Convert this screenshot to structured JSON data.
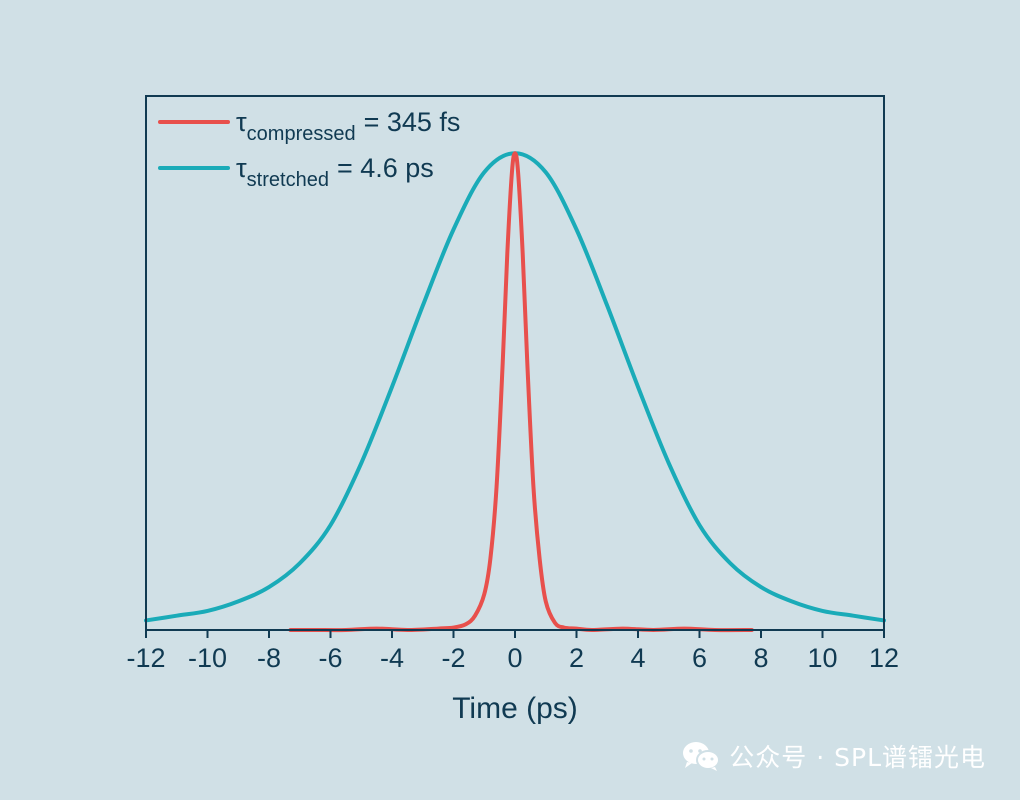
{
  "chart_data": {
    "type": "line",
    "xlabel": "Time (ps)",
    "xlim": [
      -12,
      12
    ],
    "xticks": [
      -12,
      -10,
      -8,
      -6,
      -4,
      -2,
      0,
      2,
      4,
      6,
      8,
      10,
      12
    ],
    "ylabel": "",
    "ylim": [
      0,
      1.12
    ],
    "y_tick_labels_shown": false,
    "grid": false,
    "legend_position": "top-left",
    "series": [
      {
        "name": "τcompressed = 345 fs",
        "legend_symbol": "τ",
        "legend_subscript": "compressed",
        "legend_value": "= 345 fs",
        "color": "#e8504c",
        "x": [
          -7.3,
          -6.5,
          -5.5,
          -4.5,
          -3.5,
          -2.5,
          -2.0,
          -1.6,
          -1.3,
          -1.0,
          -0.8,
          -0.6,
          -0.4,
          -0.25,
          -0.1,
          0.0,
          0.1,
          0.25,
          0.4,
          0.6,
          0.8,
          1.0,
          1.3,
          1.6,
          2.0,
          2.5,
          3.5,
          4.5,
          5.5,
          6.5,
          7.7
        ],
        "y": [
          0.0,
          0.0,
          0.0,
          0.003,
          0.0,
          0.003,
          0.005,
          0.012,
          0.03,
          0.075,
          0.15,
          0.3,
          0.56,
          0.79,
          0.96,
          1.0,
          0.96,
          0.79,
          0.56,
          0.3,
          0.15,
          0.06,
          0.015,
          0.005,
          0.003,
          0.0,
          0.003,
          0.0,
          0.003,
          0.0,
          0.0
        ]
      },
      {
        "name": "τstretched = 4.6 ps",
        "legend_symbol": "τ",
        "legend_subscript": "stretched",
        "legend_value": "= 4.6 ps",
        "color": "#1aabb8",
        "x": [
          -12,
          -11,
          -10,
          -9,
          -8,
          -7,
          -6,
          -5,
          -4,
          -3,
          -2,
          -1,
          0,
          1,
          2,
          3,
          4,
          5,
          6,
          7,
          8,
          9,
          10,
          11,
          12
        ],
        "y": [
          0.02,
          0.03,
          0.04,
          0.06,
          0.09,
          0.14,
          0.22,
          0.35,
          0.51,
          0.68,
          0.84,
          0.96,
          1.0,
          0.96,
          0.84,
          0.68,
          0.51,
          0.35,
          0.22,
          0.14,
          0.09,
          0.06,
          0.04,
          0.03,
          0.02
        ]
      }
    ]
  },
  "colors": {
    "background": "#d0e0e6",
    "axis": "#103a52",
    "text": "#103a52"
  },
  "watermark": {
    "icon": "wechat-icon",
    "text": "公众号 · SPL谱镭光电"
  }
}
